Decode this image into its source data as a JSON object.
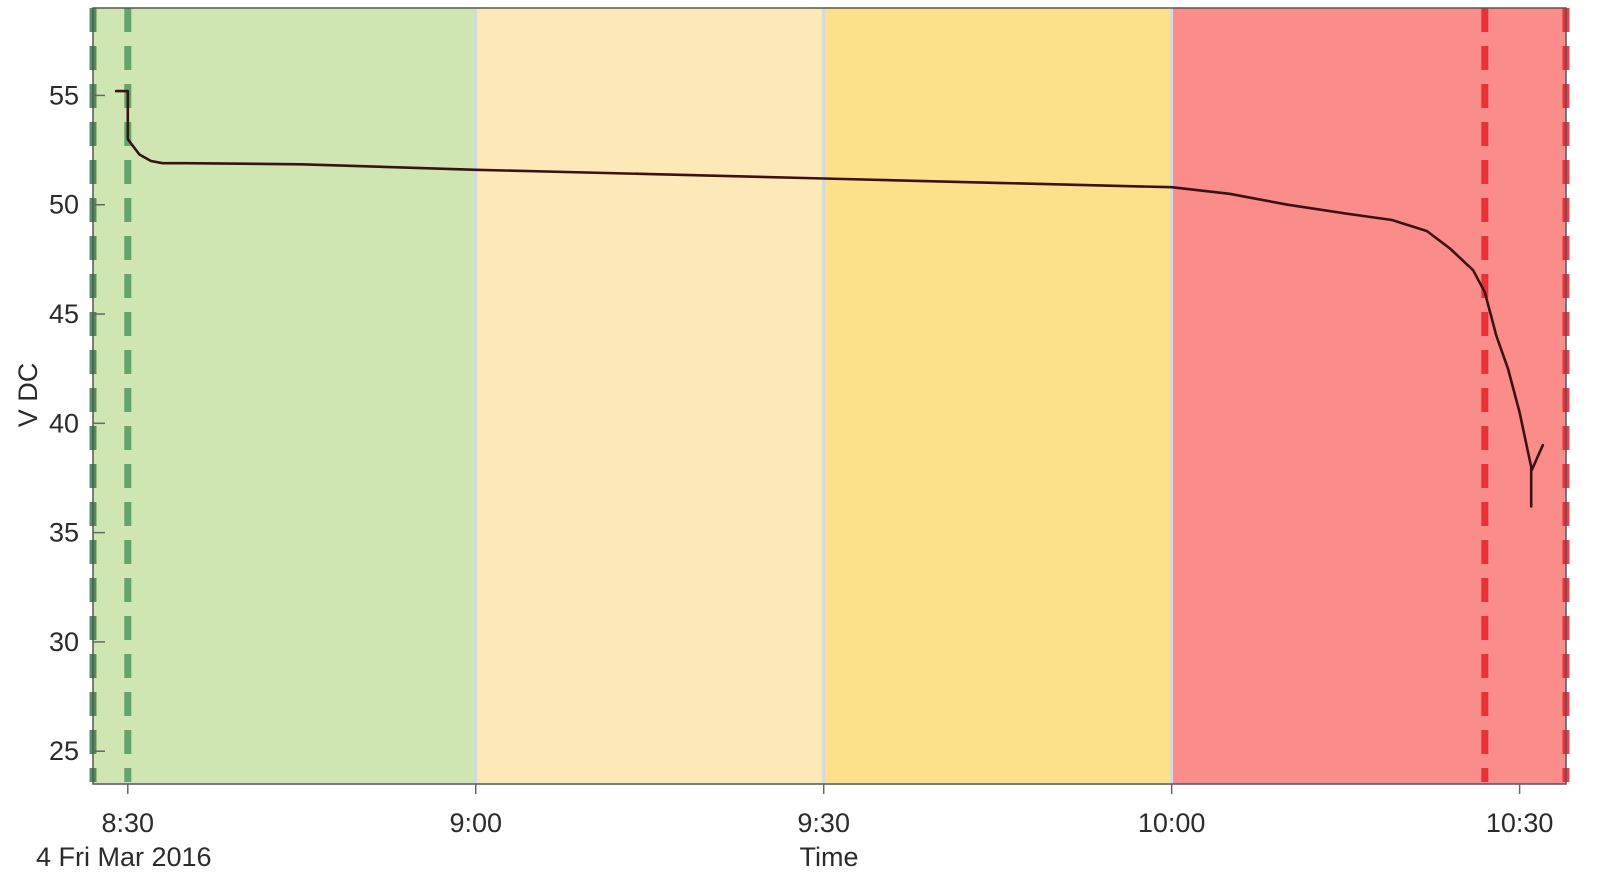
{
  "chart_data": {
    "type": "line",
    "xlabel": "Time",
    "ylabel": "V DC",
    "date_label": "4 Fri Mar 2016",
    "x_unit": "minutes",
    "xlim": [
      "8:27",
      "10:34"
    ],
    "ylim": [
      23.5,
      59
    ],
    "x_ticks": [
      {
        "t": "8:30",
        "label": "8:30"
      },
      {
        "t": "9:00",
        "label": "9:00"
      },
      {
        "t": "9:30",
        "label": "9:30"
      },
      {
        "t": "10:00",
        "label": "10:00"
      },
      {
        "t": "10:30",
        "label": "10:30"
      }
    ],
    "y_ticks": [
      25,
      30,
      35,
      40,
      45,
      50,
      55
    ],
    "grid": false,
    "bands": [
      {
        "from": "8:27",
        "to": "9:00",
        "color": "#cfe6b3"
      },
      {
        "from": "9:00",
        "to": "9:30",
        "color": "#fde9b8"
      },
      {
        "from": "9:30",
        "to": "10:00",
        "color": "#fde08a"
      },
      {
        "from": "10:00",
        "to": "10:34",
        "color": "#fa8c89"
      }
    ],
    "markers": [
      {
        "t": "8:27",
        "color": "#3c7d4f"
      },
      {
        "t": "8:30",
        "color": "#4f9a5e"
      },
      {
        "t": "10:27",
        "color": "#e8222a"
      },
      {
        "t": "10:34",
        "color": "#e8222a"
      }
    ],
    "series": [
      {
        "color": "#3a1214",
        "points": [
          [
            "8:29",
            55.2
          ],
          [
            "8:30",
            55.2
          ],
          [
            "8:30",
            54.2
          ],
          [
            "8:30",
            53.0
          ],
          [
            "8:31",
            52.3
          ],
          [
            "8:32",
            52.0
          ],
          [
            "8:33",
            51.9
          ],
          [
            "8:35",
            51.9
          ],
          [
            "8:45",
            51.85
          ],
          [
            "9:00",
            51.6
          ],
          [
            "9:15",
            51.4
          ],
          [
            "9:30",
            51.2
          ],
          [
            "9:45",
            51.0
          ],
          [
            "10:00",
            50.8
          ],
          [
            "10:05",
            50.5
          ],
          [
            "10:10",
            50.0
          ],
          [
            "10:15",
            49.6
          ],
          [
            "10:19",
            49.3
          ],
          [
            "10:22",
            48.8
          ],
          [
            "10:24",
            48.0
          ],
          [
            "10:26",
            47.0
          ],
          [
            "10:27",
            46.0
          ],
          [
            "10:28",
            44.0
          ],
          [
            "10:29",
            42.5
          ],
          [
            "10:30",
            40.5
          ],
          [
            "10:31",
            38.0
          ],
          [
            "10:31",
            36.2
          ],
          [
            "10:31",
            37.8
          ],
          [
            "10:32",
            39.0
          ]
        ]
      }
    ]
  }
}
